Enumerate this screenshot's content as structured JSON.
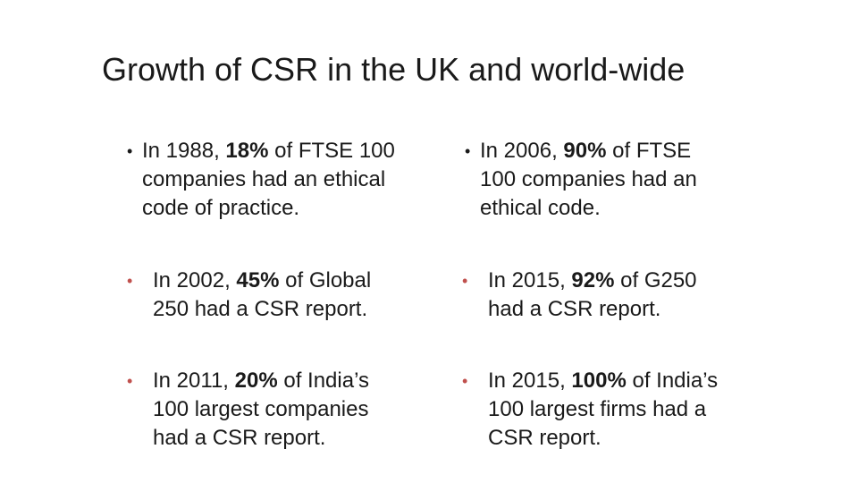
{
  "slide": {
    "title": "Growth of CSR in the UK and world-wide",
    "bullet_char": "•",
    "bullets": [
      {
        "lines": [
          {
            "pre": "In 1988, ",
            "bold": "18%",
            "post": " of FTSE 100"
          },
          {
            "pre": "companies had an ethical",
            "bold": "",
            "post": ""
          },
          {
            "pre": "code of practice.",
            "bold": "",
            "post": ""
          }
        ]
      },
      {
        "lines": [
          {
            "pre": "In 2006, ",
            "bold": "90%",
            "post": " of FTSE"
          },
          {
            "pre": "100 companies had an",
            "bold": "",
            "post": ""
          },
          {
            "pre": "ethical code.",
            "bold": "",
            "post": ""
          }
        ]
      },
      {
        "lines": [
          {
            "pre": "In 2002, ",
            "bold": "45%",
            "post": " of Global"
          },
          {
            "pre": "250 had a CSR report.",
            "bold": "",
            "post": ""
          }
        ]
      },
      {
        "lines": [
          {
            "pre": "In 2015, ",
            "bold": "92%",
            "post": " of G250"
          },
          {
            "pre": "had a CSR report.",
            "bold": "",
            "post": ""
          }
        ]
      },
      {
        "lines": [
          {
            "pre": "In 2011, ",
            "bold": "20%",
            "post": " of India’s"
          },
          {
            "pre": "100 largest companies",
            "bold": "",
            "post": ""
          },
          {
            "pre": "had a CSR report.",
            "bold": "",
            "post": ""
          }
        ]
      },
      {
        "lines": [
          {
            "pre": "In 2015, ",
            "bold": "100%",
            "post": " of India’s"
          },
          {
            "pre": "100 largest firms had a",
            "bold": "",
            "post": ""
          },
          {
            "pre": "CSR report.",
            "bold": "",
            "post": ""
          }
        ]
      }
    ]
  },
  "colors": {
    "text": "#1a1a1a",
    "accent_bullet": "#c0504d"
  }
}
